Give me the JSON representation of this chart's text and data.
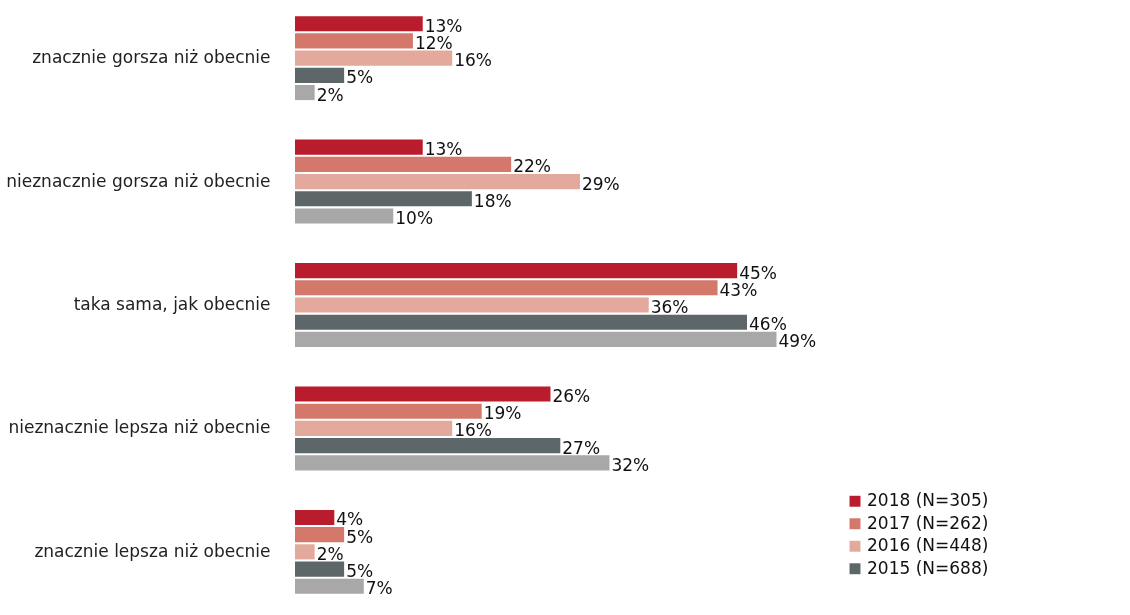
{
  "chart_data": {
    "type": "bar",
    "orientation": "horizontal",
    "data_labels": true,
    "legend": "bottom right",
    "categories": [
      "znacznie gorsza niż obecnie",
      "nieznacznie gorsza niż obecnie",
      "taka sama, jak obecnie",
      "nieznacznie lepsza niż obecnie",
      "znacznie lepsza niż obecnie"
    ],
    "series": [
      {
        "name": "2018 (N=305)",
        "color": "#b91c2c",
        "values": [
          13,
          13,
          45,
          26,
          4
        ],
        "value_labels": [
          "13%",
          "13%",
          "45%",
          "26%",
          "4%"
        ]
      },
      {
        "name": "2017 (N=262)",
        "color": "#d4786b",
        "values": [
          12,
          22,
          43,
          19,
          5
        ],
        "value_labels": [
          "12%",
          "22%",
          "43%",
          "19%",
          "5%"
        ]
      },
      {
        "name": "2016 (N=448)",
        "color": "#e3a99d",
        "values": [
          16,
          29,
          36,
          16,
          2
        ],
        "value_labels": [
          "16%",
          "29%",
          "36%",
          "16%",
          "2%"
        ]
      },
      {
        "name": "2015 (N=688)",
        "color": "#5d6769",
        "values": [
          5,
          18,
          46,
          27,
          5
        ],
        "value_labels": [
          "5%",
          "18%",
          "46%",
          "27%",
          "5%"
        ]
      },
      {
        "color": "#a8a8a8",
        "values": [
          2,
          10,
          49,
          32,
          7
        ],
        "value_labels": [
          "2%",
          "10%",
          "49%",
          "32%",
          "7%"
        ]
      }
    ]
  }
}
